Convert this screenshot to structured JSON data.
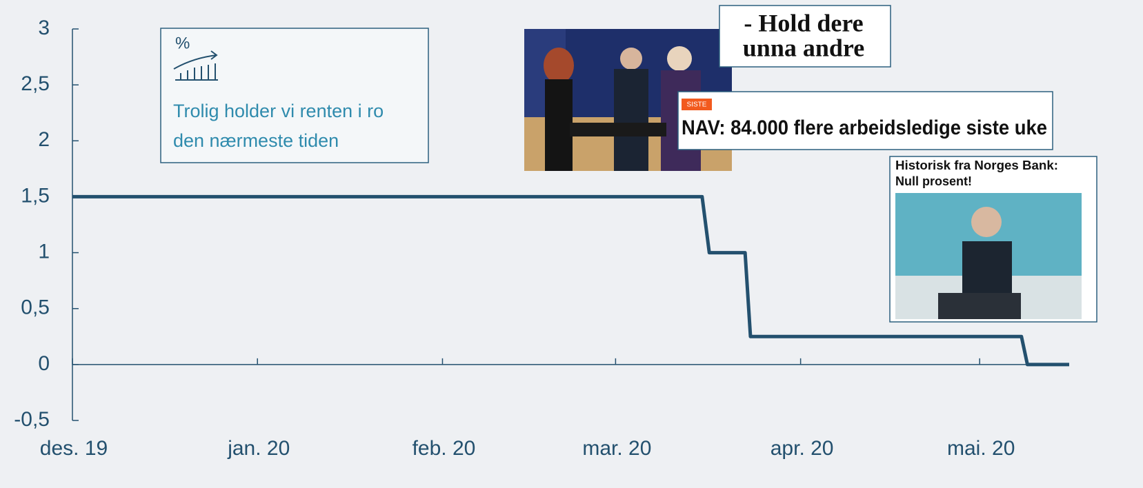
{
  "chart_data": {
    "type": "line",
    "x": [
      0,
      105.5,
      106.7,
      112.7,
      113.6,
      159,
      160,
      167
    ],
    "values": [
      1.5,
      1.5,
      1,
      1,
      0.25,
      0.25,
      0,
      0
    ],
    "color": "#23506e",
    "xlim": [
      0,
      167
    ],
    "xticks": [
      {
        "value": 0,
        "label": "des. 19"
      },
      {
        "value": 31,
        "label": "jan. 20"
      },
      {
        "value": 62,
        "label": "feb. 20"
      },
      {
        "value": 91,
        "label": "mar. 20"
      },
      {
        "value": 122,
        "label": "apr. 20"
      },
      {
        "value": 152,
        "label": "mai. 20"
      }
    ],
    "ylim": [
      -0.5,
      3
    ],
    "yticks": [
      {
        "value": -0.5,
        "label": "-0,5"
      },
      0,
      {
        "value": 0.5,
        "label": "0,5"
      },
      1,
      {
        "value": 1.5,
        "label": "1,5"
      },
      2,
      {
        "value": 2.5,
        "label": "2,5"
      },
      3
    ],
    "annotations": {
      "info_box": [
        "Trolig holder vi renten i ro",
        "den nærmeste tiden"
      ],
      "icon_symbol": "%",
      "headline_1": [
        "- Hold dere",
        "unna andre"
      ],
      "badge": "SISTE",
      "headline_2": "NAV: 84.000 flere arbeidsledige siste uke",
      "headline_3": [
        "Historisk fra Norges Bank:",
        "Null prosent!"
      ]
    }
  }
}
